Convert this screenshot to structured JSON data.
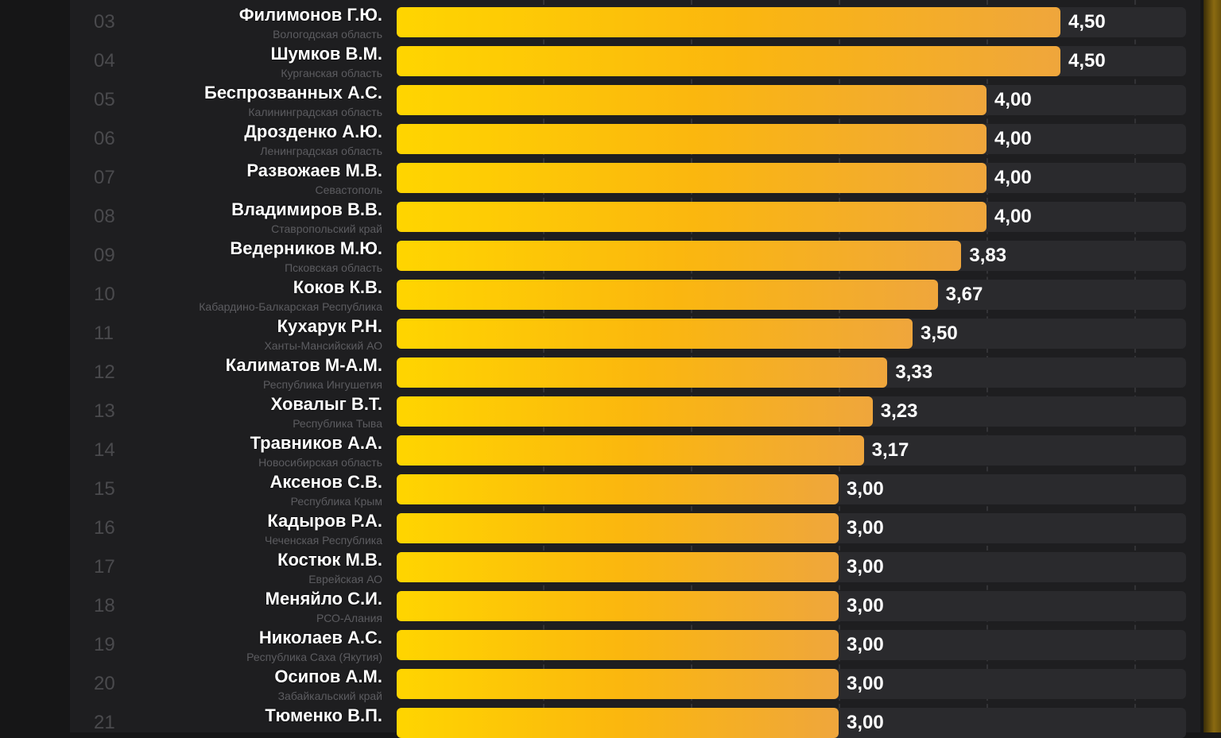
{
  "chart_data": {
    "type": "bar",
    "orientation": "horizontal",
    "xlim": [
      0,
      5.35
    ],
    "grid": true,
    "colors": {
      "bar_start": "#ffd500",
      "bar_end": "#efa63c",
      "track": "#2a2a2d"
    },
    "rows": [
      {
        "rank": "03",
        "name": "Филимонов Г.Ю.",
        "region": "Вологодская область",
        "value": 4.5,
        "label": "4,50"
      },
      {
        "rank": "04",
        "name": "Шумков В.М.",
        "region": "Курганская область",
        "value": 4.5,
        "label": "4,50"
      },
      {
        "rank": "05",
        "name": "Беспрозванных А.С.",
        "region": "Калининградская область",
        "value": 4.0,
        "label": "4,00"
      },
      {
        "rank": "06",
        "name": "Дрозденко А.Ю.",
        "region": "Ленинградская область",
        "value": 4.0,
        "label": "4,00"
      },
      {
        "rank": "07",
        "name": "Развожаев М.В.",
        "region": "Севастополь",
        "value": 4.0,
        "label": "4,00"
      },
      {
        "rank": "08",
        "name": "Владимиров В.В.",
        "region": "Ставропольский край",
        "value": 4.0,
        "label": "4,00"
      },
      {
        "rank": "09",
        "name": "Ведерников М.Ю.",
        "region": "Псковская область",
        "value": 3.83,
        "label": "3,83"
      },
      {
        "rank": "10",
        "name": "Коков К.В.",
        "region": "Кабардино-Балкарская Республика",
        "value": 3.67,
        "label": "3,67"
      },
      {
        "rank": "11",
        "name": "Кухарук Р.Н.",
        "region": "Ханты-Мансийский АО",
        "value": 3.5,
        "label": "3,50"
      },
      {
        "rank": "12",
        "name": "Калиматов М-А.М.",
        "region": "Республика Ингушетия",
        "value": 3.33,
        "label": "3,33"
      },
      {
        "rank": "13",
        "name": "Ховалыг В.Т.",
        "region": "Республика Тыва",
        "value": 3.23,
        "label": "3,23"
      },
      {
        "rank": "14",
        "name": "Травников А.А.",
        "region": "Новосибирская область",
        "value": 3.17,
        "label": "3,17"
      },
      {
        "rank": "15",
        "name": "Аксенов С.В.",
        "region": "Республика Крым",
        "value": 3.0,
        "label": "3,00"
      },
      {
        "rank": "16",
        "name": "Кадыров Р.А.",
        "region": "Чеченская Республика",
        "value": 3.0,
        "label": "3,00"
      },
      {
        "rank": "17",
        "name": "Костюк М.В.",
        "region": "Еврейская АО",
        "value": 3.0,
        "label": "3,00"
      },
      {
        "rank": "18",
        "name": "Меняйло С.И.",
        "region": "РСО-Алания",
        "value": 3.0,
        "label": "3,00"
      },
      {
        "rank": "19",
        "name": "Николаев А.С.",
        "region": "Республика Саха (Якутия)",
        "value": 3.0,
        "label": "3,00"
      },
      {
        "rank": "20",
        "name": "Осипов А.М.",
        "region": "Забайкальский край",
        "value": 3.0,
        "label": "3,00"
      },
      {
        "rank": "21",
        "name": "Тюменко В.П.",
        "region": "",
        "value": 3.0,
        "label": "3,00"
      }
    ]
  }
}
